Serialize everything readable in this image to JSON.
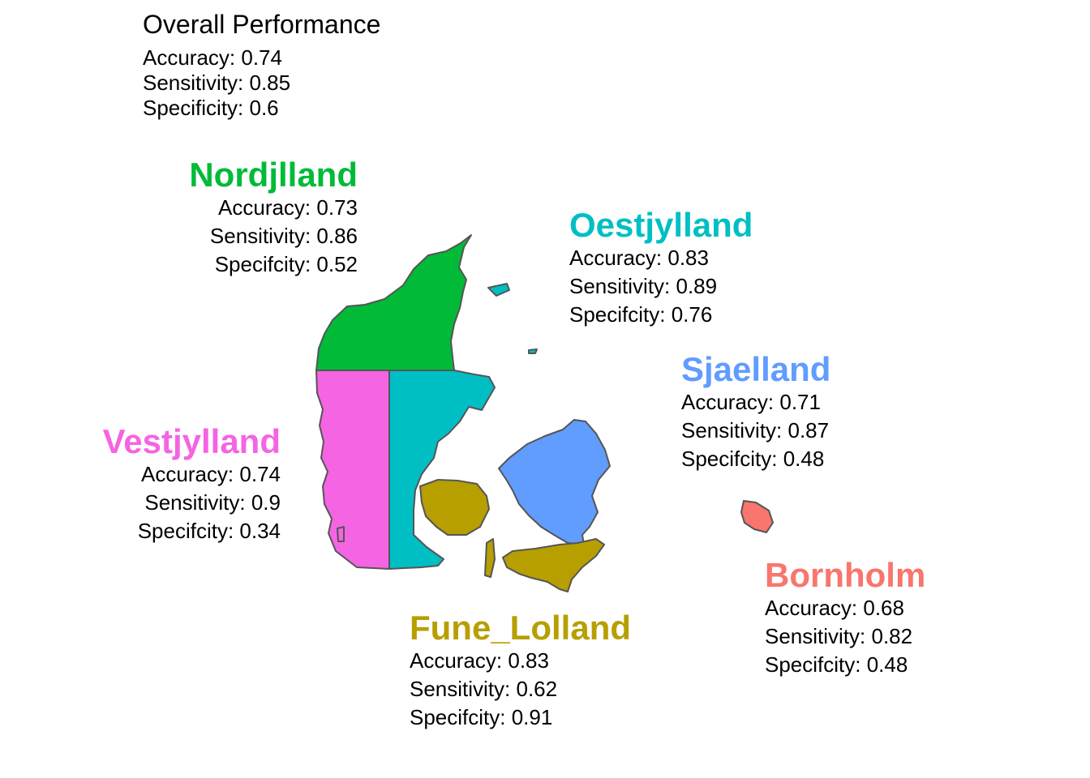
{
  "overall": {
    "title": "Overall Performance",
    "accuracy": "Accuracy: 0.74",
    "sensitivity": "Sensitivity: 0.85",
    "specificity": "Specificity: 0.6"
  },
  "regions": {
    "nordjylland": {
      "name": "Nordjlland",
      "color": "#00BA38",
      "accuracy": "Accuracy: 0.73",
      "sensitivity": "Sensitivity: 0.86",
      "specificity": "Specifcity: 0.52"
    },
    "oestjylland": {
      "name": "Oestjylland",
      "color": "#00BFC4",
      "accuracy": "Accuracy: 0.83",
      "sensitivity": "Sensitivity: 0.89",
      "specificity": "Specifcity: 0.76"
    },
    "sjaelland": {
      "name": "Sjaelland",
      "color": "#619CFF",
      "accuracy": "Accuracy: 0.71",
      "sensitivity": "Sensitivity: 0.87",
      "specificity": "Specifcity: 0.48"
    },
    "vestjylland": {
      "name": "Vestjylland",
      "color": "#F564E3",
      "accuracy": "Accuracy: 0.74",
      "sensitivity": "Sensitivity: 0.9",
      "specificity": "Specifcity: 0.34"
    },
    "fune_lolland": {
      "name": "Fune_Lolland",
      "color": "#B79F00",
      "accuracy": "Accuracy: 0.83",
      "sensitivity": "Sensitivity: 0.62",
      "specificity": "Specifcity: 0.91"
    },
    "bornholm": {
      "name": "Bornholm",
      "color": "#F8766D",
      "accuracy": "Accuracy: 0.68",
      "sensitivity": "Sensitivity: 0.82",
      "specificity": "Specifcity: 0.48"
    }
  },
  "map": {
    "border_color": "#555555"
  }
}
